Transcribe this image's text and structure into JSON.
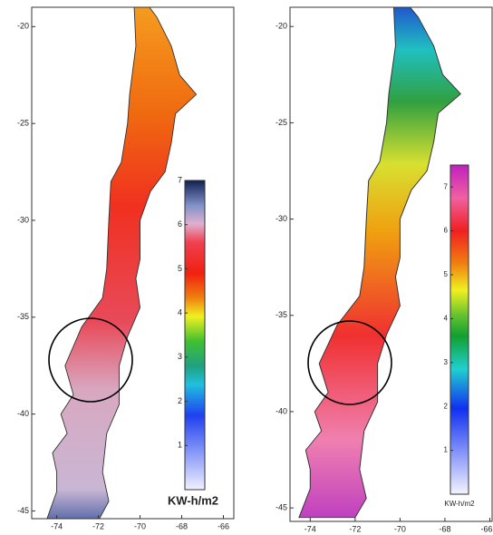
{
  "panels": [
    {
      "xlim": [
        -75.2,
        -65.5
      ],
      "ylim": [
        -45.4,
        -19
      ],
      "xticks": [
        -74,
        -72,
        -70,
        -68,
        -66
      ],
      "yticks": [
        -20,
        -25,
        -30,
        -35,
        -40,
        -45
      ],
      "colorbar": {
        "clim": [
          0,
          7
        ],
        "ticks": [
          1,
          2,
          3,
          4,
          5,
          6,
          7
        ],
        "label": "KW-h/m2"
      }
    },
    {
      "xlim": [
        -74.9,
        -65.9
      ],
      "ylim": [
        -45.7,
        -19
      ],
      "xticks": [
        -74,
        -72,
        -70,
        -68,
        -66
      ],
      "yticks": [
        -20,
        -25,
        -30,
        -35,
        -40,
        -45
      ],
      "colorbar": {
        "clim": [
          0,
          7.5
        ],
        "ticks": [
          1,
          2,
          3,
          4,
          5,
          6,
          7
        ],
        "label": "KW-h/m2"
      }
    }
  ]
}
